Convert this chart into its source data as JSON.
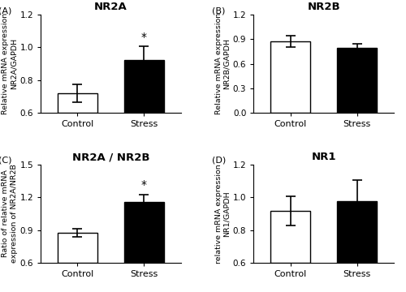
{
  "panels": [
    {
      "label": "(A)",
      "title": "NR2A",
      "ylabel": "Relative mRNA expression\nNR2A/GAPDH",
      "ylim": [
        0.6,
        1.2
      ],
      "yticks": [
        0.6,
        0.8,
        1.0,
        1.2
      ],
      "bar_values": [
        0.72,
        0.925
      ],
      "bar_errors": [
        0.055,
        0.08
      ],
      "significant": true,
      "categories": [
        "Control",
        "Stress"
      ]
    },
    {
      "label": "(B)",
      "title": "NR2B",
      "ylabel": "Relative mRNA expression\nNR2B/GAPDH",
      "ylim": [
        0.0,
        1.2
      ],
      "yticks": [
        0.0,
        0.3,
        0.6,
        0.9,
        1.2
      ],
      "bar_values": [
        0.87,
        0.79
      ],
      "bar_errors": [
        0.07,
        0.055
      ],
      "significant": false,
      "categories": [
        "Control",
        "Stress"
      ]
    },
    {
      "label": "(C)",
      "title": "NR2A / NR2B",
      "ylabel": "Ratio of relative mRNA\nexpression of NR2A/NR2B",
      "ylim": [
        0.6,
        1.5
      ],
      "yticks": [
        0.6,
        0.9,
        1.2,
        1.5
      ],
      "bar_values": [
        0.875,
        1.155
      ],
      "bar_errors": [
        0.04,
        0.065
      ],
      "significant": true,
      "categories": [
        "Control",
        "Stress"
      ]
    },
    {
      "label": "(D)",
      "title": "NR1",
      "ylabel": "relative mRNA expression\nNR1/GAPDH",
      "ylim": [
        0.6,
        1.2
      ],
      "yticks": [
        0.6,
        0.8,
        1.0,
        1.2
      ],
      "bar_values": [
        0.915,
        0.975
      ],
      "bar_errors": [
        0.09,
        0.13
      ],
      "significant": false,
      "categories": [
        "Control",
        "Stress"
      ]
    }
  ],
  "bar_colors": [
    "white",
    "black"
  ],
  "bar_edge_color": "black",
  "bar_width": 0.6,
  "capsize": 4,
  "error_color": "black",
  "error_linewidth": 1.2,
  "label_fontsize": 8,
  "tick_fontsize": 7.5,
  "ylabel_fontsize": 6.8,
  "title_fontsize": 9.5,
  "cat_fontsize": 8
}
